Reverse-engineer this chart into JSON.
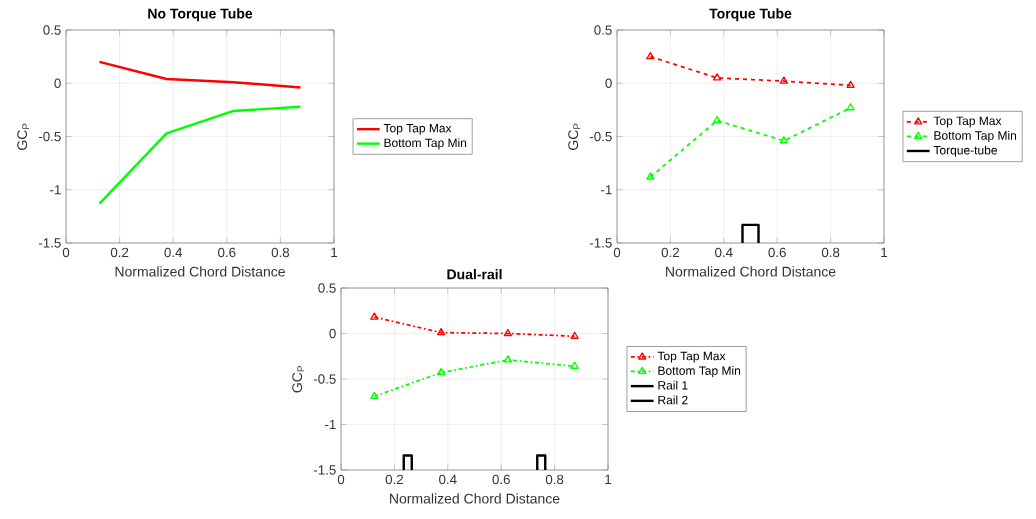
{
  "chart_data": [
    {
      "type": "line",
      "title": "No Torque Tube",
      "xlabel": "Normalized Chord Distance",
      "ylabel": "GC$_{P}$",
      "xlim": [
        0,
        1
      ],
      "ylim": [
        -1.5,
        0.5
      ],
      "xticks": [
        0,
        0.2,
        0.4,
        0.6,
        0.8,
        1
      ],
      "yticks": [
        -1.5,
        -1,
        -0.5,
        0,
        0.5
      ],
      "grid": true,
      "legend": "right",
      "line_style": "solid",
      "marker": "none",
      "series": [
        {
          "name": "Top Tap Max",
          "color": "#ff0000",
          "x": [
            0.125,
            0.375,
            0.625,
            0.875
          ],
          "values": [
            0.2,
            0.04,
            0.01,
            -0.04
          ]
        },
        {
          "name": "Bottom Tap Min",
          "color": "#00ff00",
          "x": [
            0.125,
            0.375,
            0.625,
            0.875
          ],
          "values": [
            -1.13,
            -0.47,
            -0.26,
            -0.22
          ]
        }
      ]
    },
    {
      "type": "line",
      "title": "Torque Tube",
      "xlabel": "Normalized Chord Distance",
      "ylabel": "GC$_{P}$",
      "xlim": [
        0,
        1
      ],
      "ylim": [
        -1.5,
        0.5
      ],
      "xticks": [
        0,
        0.2,
        0.4,
        0.6,
        0.8,
        1
      ],
      "yticks": [
        -1.5,
        -1,
        -0.5,
        0,
        0.5
      ],
      "grid": true,
      "legend": "right",
      "series": [
        {
          "name": "Top Tap Max",
          "color": "#ff0000",
          "line_style": "dashed",
          "marker": "triangle",
          "x": [
            0.125,
            0.375,
            0.625,
            0.875
          ],
          "values": [
            0.25,
            0.05,
            0.02,
            -0.02
          ]
        },
        {
          "name": "Bottom Tap Min",
          "color": "#00ff00",
          "line_style": "dashed",
          "marker": "triangle",
          "x": [
            0.125,
            0.375,
            0.625,
            0.875
          ],
          "values": [
            -0.88,
            -0.35,
            -0.54,
            -0.23
          ]
        },
        {
          "name": "Torque-tube",
          "color": "#000000",
          "line_style": "solid",
          "marker": "none",
          "x": [
            0.47,
            0.47,
            0.53,
            0.53
          ],
          "values": [
            -1.5,
            -1.33,
            -1.33,
            -1.5
          ]
        }
      ]
    },
    {
      "type": "line",
      "title": "Dual-rail",
      "xlabel": "Normalized Chord Distance",
      "ylabel": "GC$_{P}$",
      "xlim": [
        0,
        1
      ],
      "ylim": [
        -1.5,
        0.5
      ],
      "xticks": [
        0,
        0.2,
        0.4,
        0.6,
        0.8,
        1
      ],
      "yticks": [
        -1.5,
        -1,
        -0.5,
        0,
        0.5
      ],
      "grid": true,
      "legend": "right",
      "series": [
        {
          "name": "Top Tap Max",
          "color": "#ff0000",
          "line_style": "dashdot",
          "marker": "triangle",
          "x": [
            0.125,
            0.375,
            0.625,
            0.875
          ],
          "values": [
            0.18,
            0.01,
            0.0,
            -0.03
          ]
        },
        {
          "name": "Bottom Tap Min",
          "color": "#00ff00",
          "line_style": "dashdot",
          "marker": "triangle",
          "x": [
            0.125,
            0.375,
            0.625,
            0.875
          ],
          "values": [
            -0.69,
            -0.43,
            -0.29,
            -0.36
          ]
        },
        {
          "name": "Rail 1",
          "color": "#000000",
          "line_style": "solid",
          "marker": "none",
          "x": [
            0.235,
            0.235,
            0.265,
            0.265
          ],
          "values": [
            -1.5,
            -1.34,
            -1.34,
            -1.5
          ]
        },
        {
          "name": "Rail 2",
          "color": "#000000",
          "line_style": "solid",
          "marker": "none",
          "x": [
            0.735,
            0.735,
            0.765,
            0.765
          ],
          "values": [
            -1.5,
            -1.34,
            -1.34,
            -1.5
          ]
        }
      ]
    }
  ]
}
